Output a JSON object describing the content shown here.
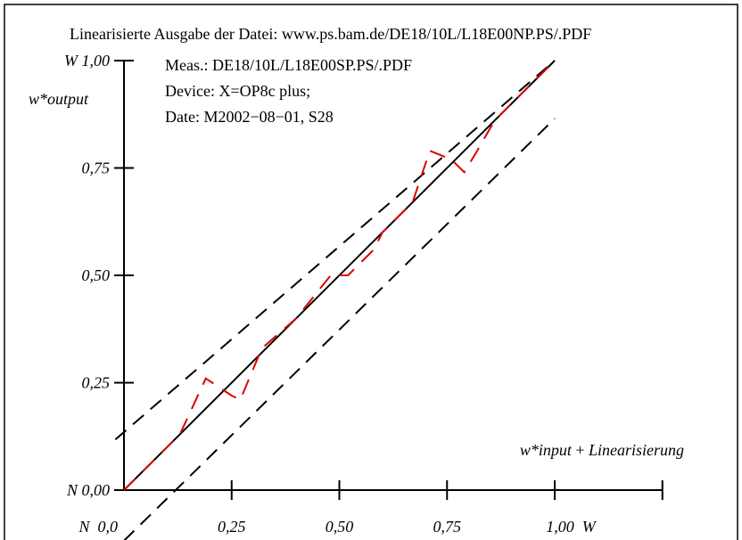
{
  "header": {
    "title": "Linearisierte Ausgabe der Datei: www.ps.bam.de/DE18/10L/L18E00NP.PS/.PDF"
  },
  "info": {
    "line1": "Meas.: DE18/10L/L18E00SP.PS/.PDF",
    "line2": "Device: X=OP8c plus;",
    "line3": "Date: M2002−08−01, S28"
  },
  "axes": {
    "ylabel": "w*output",
    "xlabel_italic": "w*input",
    "xlabel_plus": " + ",
    "xlabel_tail": "Linearisierung",
    "y_ticks": [
      "N 0,00",
      "0,25",
      "0,50",
      "0,75",
      "W 1,00"
    ],
    "x_ticks": [
      "N  0,0",
      "0,25",
      "0,50",
      "0,75",
      "1,00  W"
    ]
  },
  "colors": {
    "frame": "#000000",
    "ideal": "#000000",
    "measured": "#dd0000"
  },
  "chart_data": {
    "type": "line",
    "xlim": [
      0,
      1.25
    ],
    "ylim": [
      0,
      1.0
    ],
    "grid": false,
    "legend": "none",
    "series": [
      {
        "x": [
          0,
          1.0
        ],
        "y": [
          0,
          1.0
        ]
      },
      {
        "x": [
          0,
          1.0
        ],
        "y": [
          0.135,
          1.0
        ]
      },
      {
        "x": [
          0.12,
          1.0
        ],
        "y": [
          0,
          0.865
        ]
      },
      {
        "x": [
          0,
          0.1,
          0.13,
          0.19,
          0.25,
          0.27,
          0.32,
          0.4,
          0.48,
          0.5,
          0.52,
          0.58,
          0.6,
          0.67,
          0.71,
          0.76,
          0.79,
          0.82,
          0.86,
          0.92,
          1.0
        ],
        "y": [
          0,
          0.1,
          0.13,
          0.26,
          0.22,
          0.21,
          0.33,
          0.4,
          0.5,
          0.5,
          0.5,
          0.56,
          0.6,
          0.67,
          0.79,
          0.77,
          0.74,
          0.79,
          0.86,
          0.92,
          1.0
        ]
      }
    ]
  }
}
